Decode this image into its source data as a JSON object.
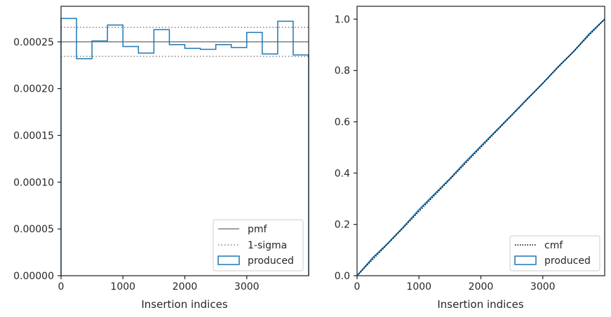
{
  "chart_data": [
    {
      "type": "line",
      "subtype": "histogram-step",
      "xlabel": "Insertion indices",
      "ylabel": "",
      "xlim": [
        0,
        4000
      ],
      "ylim": [
        0,
        0.000288
      ],
      "xticks": [
        0,
        1000,
        2000,
        3000
      ],
      "yticks": [
        0.0,
        5e-05,
        0.0001,
        0.00015,
        0.0002,
        0.00025
      ],
      "ytick_labels": [
        "0.00000",
        "0.00005",
        "0.00010",
        "0.00015",
        "0.00020",
        "0.00025"
      ],
      "xtick_labels": [
        "0",
        "1000",
        "2000",
        "3000"
      ],
      "grid": false,
      "legend_position": "lower-right",
      "series": [
        {
          "name": "pmf",
          "style": "solid",
          "color": "#808080",
          "values": [
            0.00025
          ]
        },
        {
          "name": "1-sigma",
          "style": "dotted",
          "color": "#808080",
          "values": [
            0.0002655,
            0.0002345
          ]
        },
        {
          "name": "produced",
          "style": "step",
          "color": "#1f77b4",
          "bin_edges": [
            0,
            250,
            500,
            750,
            1000,
            1250,
            1500,
            1750,
            2000,
            2250,
            2500,
            2750,
            3000,
            3250,
            3500,
            3750,
            4000
          ],
          "values": [
            0.000275,
            0.000232,
            0.000251,
            0.000268,
            0.000245,
            0.000238,
            0.000263,
            0.000247,
            0.000243,
            0.000242,
            0.000247,
            0.000244,
            0.00026,
            0.000237,
            0.000272,
            0.000236
          ]
        }
      ]
    },
    {
      "type": "line",
      "xlabel": "Insertion indices",
      "ylabel": "",
      "xlim": [
        0,
        4000
      ],
      "ylim": [
        0,
        1.05
      ],
      "xticks": [
        0,
        1000,
        2000,
        3000
      ],
      "yticks": [
        0.0,
        0.2,
        0.4,
        0.6,
        0.8,
        1.0
      ],
      "ytick_labels": [
        "0.0",
        "0.2",
        "0.4",
        "0.6",
        "0.8",
        "1.0"
      ],
      "xtick_labels": [
        "0",
        "1000",
        "2000",
        "3000"
      ],
      "grid": false,
      "legend_position": "lower-right",
      "series": [
        {
          "name": "cmf",
          "style": "dotted",
          "color": "#000000",
          "x": [
            0,
            4000
          ],
          "values": [
            0.0,
            1.0
          ]
        },
        {
          "name": "produced",
          "style": "step",
          "color": "#1f77b4",
          "x": [
            0,
            250,
            500,
            750,
            1000,
            1250,
            1500,
            1750,
            2000,
            2250,
            2500,
            2750,
            3000,
            3250,
            3500,
            3750,
            4000
          ],
          "values": [
            0.0,
            0.069,
            0.127,
            0.19,
            0.257,
            0.318,
            0.378,
            0.443,
            0.505,
            0.566,
            0.627,
            0.689,
            0.75,
            0.815,
            0.874,
            0.942,
            1.0
          ]
        }
      ]
    }
  ]
}
